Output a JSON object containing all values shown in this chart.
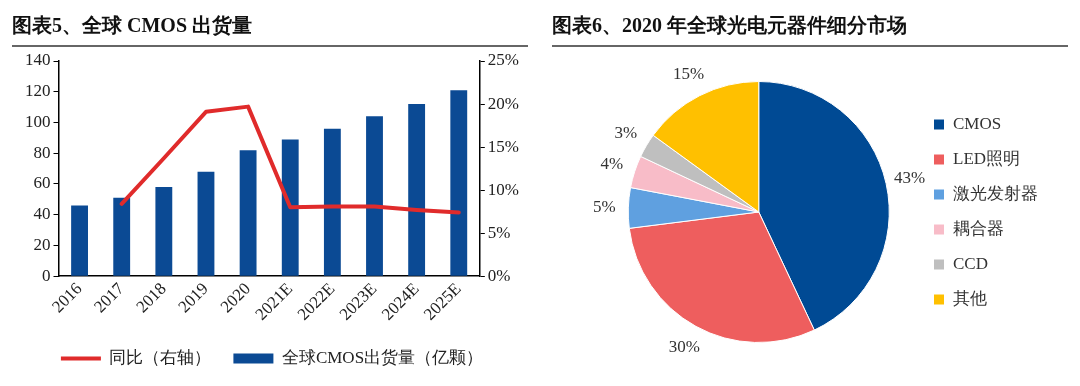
{
  "chart_data": [
    {
      "type": "bar",
      "title": "图表5、全球 CMOS 出货量",
      "categories": [
        "2016",
        "2017",
        "2018",
        "2019",
        "2020",
        "2021E",
        "2022E",
        "2023E",
        "2024E",
        "2025E"
      ],
      "series": [
        {
          "name": "全球CMOS出货量（亿颗）",
          "color": "#0b4a94",
          "values": [
            46,
            51,
            58,
            68,
            82,
            89,
            96,
            104,
            112,
            121
          ]
        },
        {
          "name": "同比（右轴）",
          "type": "line",
          "axis": "y2",
          "color": "#e02b2b",
          "values": [
            null,
            8.4,
            13.7,
            19.1,
            19.7,
            8.0,
            8.1,
            8.1,
            7.7,
            7.4
          ]
        }
      ],
      "ylim": [
        0,
        140
      ],
      "yticks": [
        0,
        20,
        40,
        60,
        80,
        100,
        120,
        140
      ],
      "y2lim": [
        0,
        25
      ],
      "y2ticks": [
        {
          "value": 0,
          "label": "0%"
        },
        {
          "value": 5,
          "label": "5%"
        },
        {
          "value": 10,
          "label": "10%"
        },
        {
          "value": 15,
          "label": "15%"
        },
        {
          "value": 20,
          "label": "20%"
        },
        {
          "value": 25,
          "label": "25%"
        }
      ],
      "grid": false,
      "legend": "bottom",
      "marker": "none",
      "line_style": "solid"
    },
    {
      "type": "pie",
      "title": "图表6、2020 年全球光电元器件细分市场",
      "categories": [
        "CMOS",
        "LED照明",
        "激光发射器",
        "耦合器",
        "CCD",
        "其他"
      ],
      "values": [
        43,
        30,
        5,
        4,
        3,
        15
      ],
      "colors": [
        "#004a94",
        "#ee5e5e",
        "#5fa0e0",
        "#f8bcc8",
        "#bfbfbf",
        "#ffc000"
      ],
      "value_labels": [
        "43%",
        "30%",
        "5%",
        "4%",
        "3%",
        "15%"
      ],
      "legend": "right"
    }
  ]
}
